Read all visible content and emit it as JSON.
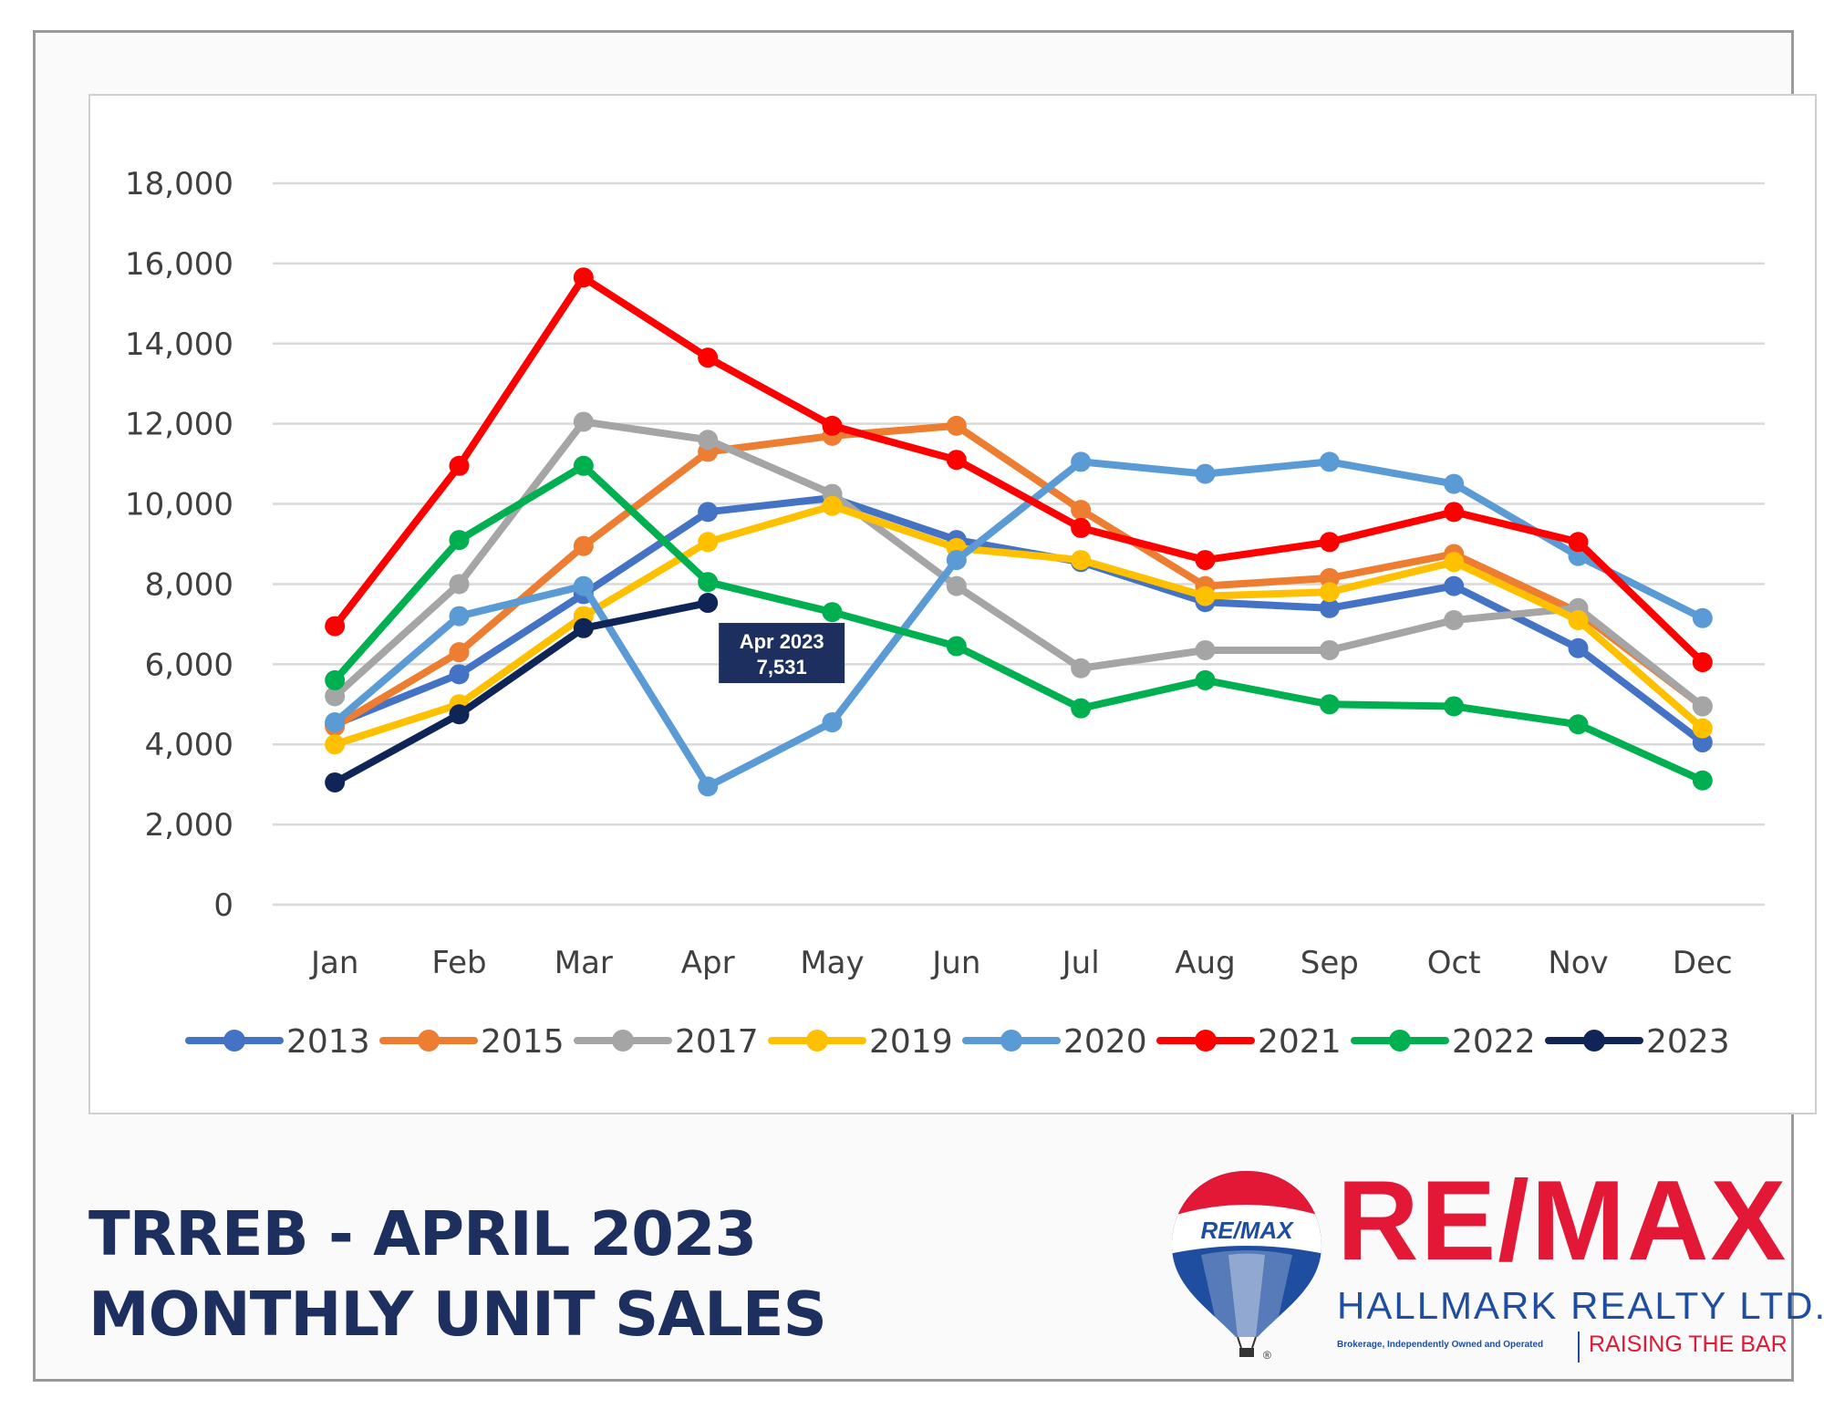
{
  "chart_data": {
    "type": "line",
    "categories": [
      "Jan",
      "Feb",
      "Mar",
      "Apr",
      "May",
      "Jun",
      "Jul",
      "Aug",
      "Sep",
      "Oct",
      "Nov",
      "Dec"
    ],
    "ylim": [
      0,
      18000
    ],
    "yticks": [
      0,
      2000,
      4000,
      6000,
      8000,
      10000,
      12000,
      14000,
      16000,
      18000
    ],
    "ytick_labels": [
      "0",
      "2,000",
      "4,000",
      "6,000",
      "8,000",
      "10,000",
      "12,000",
      "14,000",
      "16,000",
      "18,000"
    ],
    "grid": true,
    "legend_position": "bottom",
    "series": [
      {
        "name": "2013",
        "color": "#4472c4",
        "values": [
          4500,
          5750,
          7750,
          9800,
          10150,
          9100,
          8550,
          7550,
          7400,
          7950,
          6400,
          4050
        ]
      },
      {
        "name": "2015",
        "color": "#ed7d31",
        "values": [
          4450,
          6300,
          8950,
          11300,
          11700,
          11950,
          9850,
          7950,
          8150,
          8750,
          7300,
          4950
        ]
      },
      {
        "name": "2017",
        "color": "#a5a5a5",
        "values": [
          5200,
          8000,
          12050,
          11600,
          10250,
          7950,
          5900,
          6350,
          6350,
          7100,
          7400,
          4950
        ]
      },
      {
        "name": "2019",
        "color": "#ffc000",
        "values": [
          4000,
          5000,
          7200,
          9050,
          9950,
          8900,
          8600,
          7700,
          7800,
          8550,
          7100,
          4400
        ]
      },
      {
        "name": "2020",
        "color": "#5b9bd5",
        "values": [
          4550,
          7200,
          7950,
          2950,
          4550,
          8600,
          11050,
          10750,
          11050,
          10500,
          8700,
          7150
        ]
      },
      {
        "name": "2021",
        "color": "#ff0000",
        "values": [
          6950,
          10950,
          15650,
          13650,
          11950,
          11100,
          9400,
          8600,
          9050,
          9800,
          9050,
          6050
        ]
      },
      {
        "name": "2022",
        "color": "#00b050",
        "values": [
          5600,
          9100,
          10950,
          8050,
          7300,
          6450,
          4900,
          5600,
          5000,
          4950,
          4500,
          3100
        ]
      },
      {
        "name": "2023",
        "color": "#0f2557",
        "values": [
          3050,
          4750,
          6900,
          7531,
          null,
          null,
          null,
          null,
          null,
          null,
          null,
          null
        ]
      }
    ],
    "annotation": {
      "line1": "Apr 2023",
      "line2": "7,531"
    }
  },
  "title": {
    "line1": "TRREB - APRIL 2023",
    "line2": "MONTHLY UNIT SALES"
  },
  "logo": {
    "balloon_text": "RE/MAX",
    "brand": "RE/MAX",
    "subtitle": "HALLMARK REALTY LTD.",
    "small_text": "Brokerage, Independently Owned and Operated",
    "tagline": "RAISING THE BAR",
    "registered": "®",
    "colors": {
      "red": "#e31837",
      "blue": "#1f4ea1"
    }
  }
}
